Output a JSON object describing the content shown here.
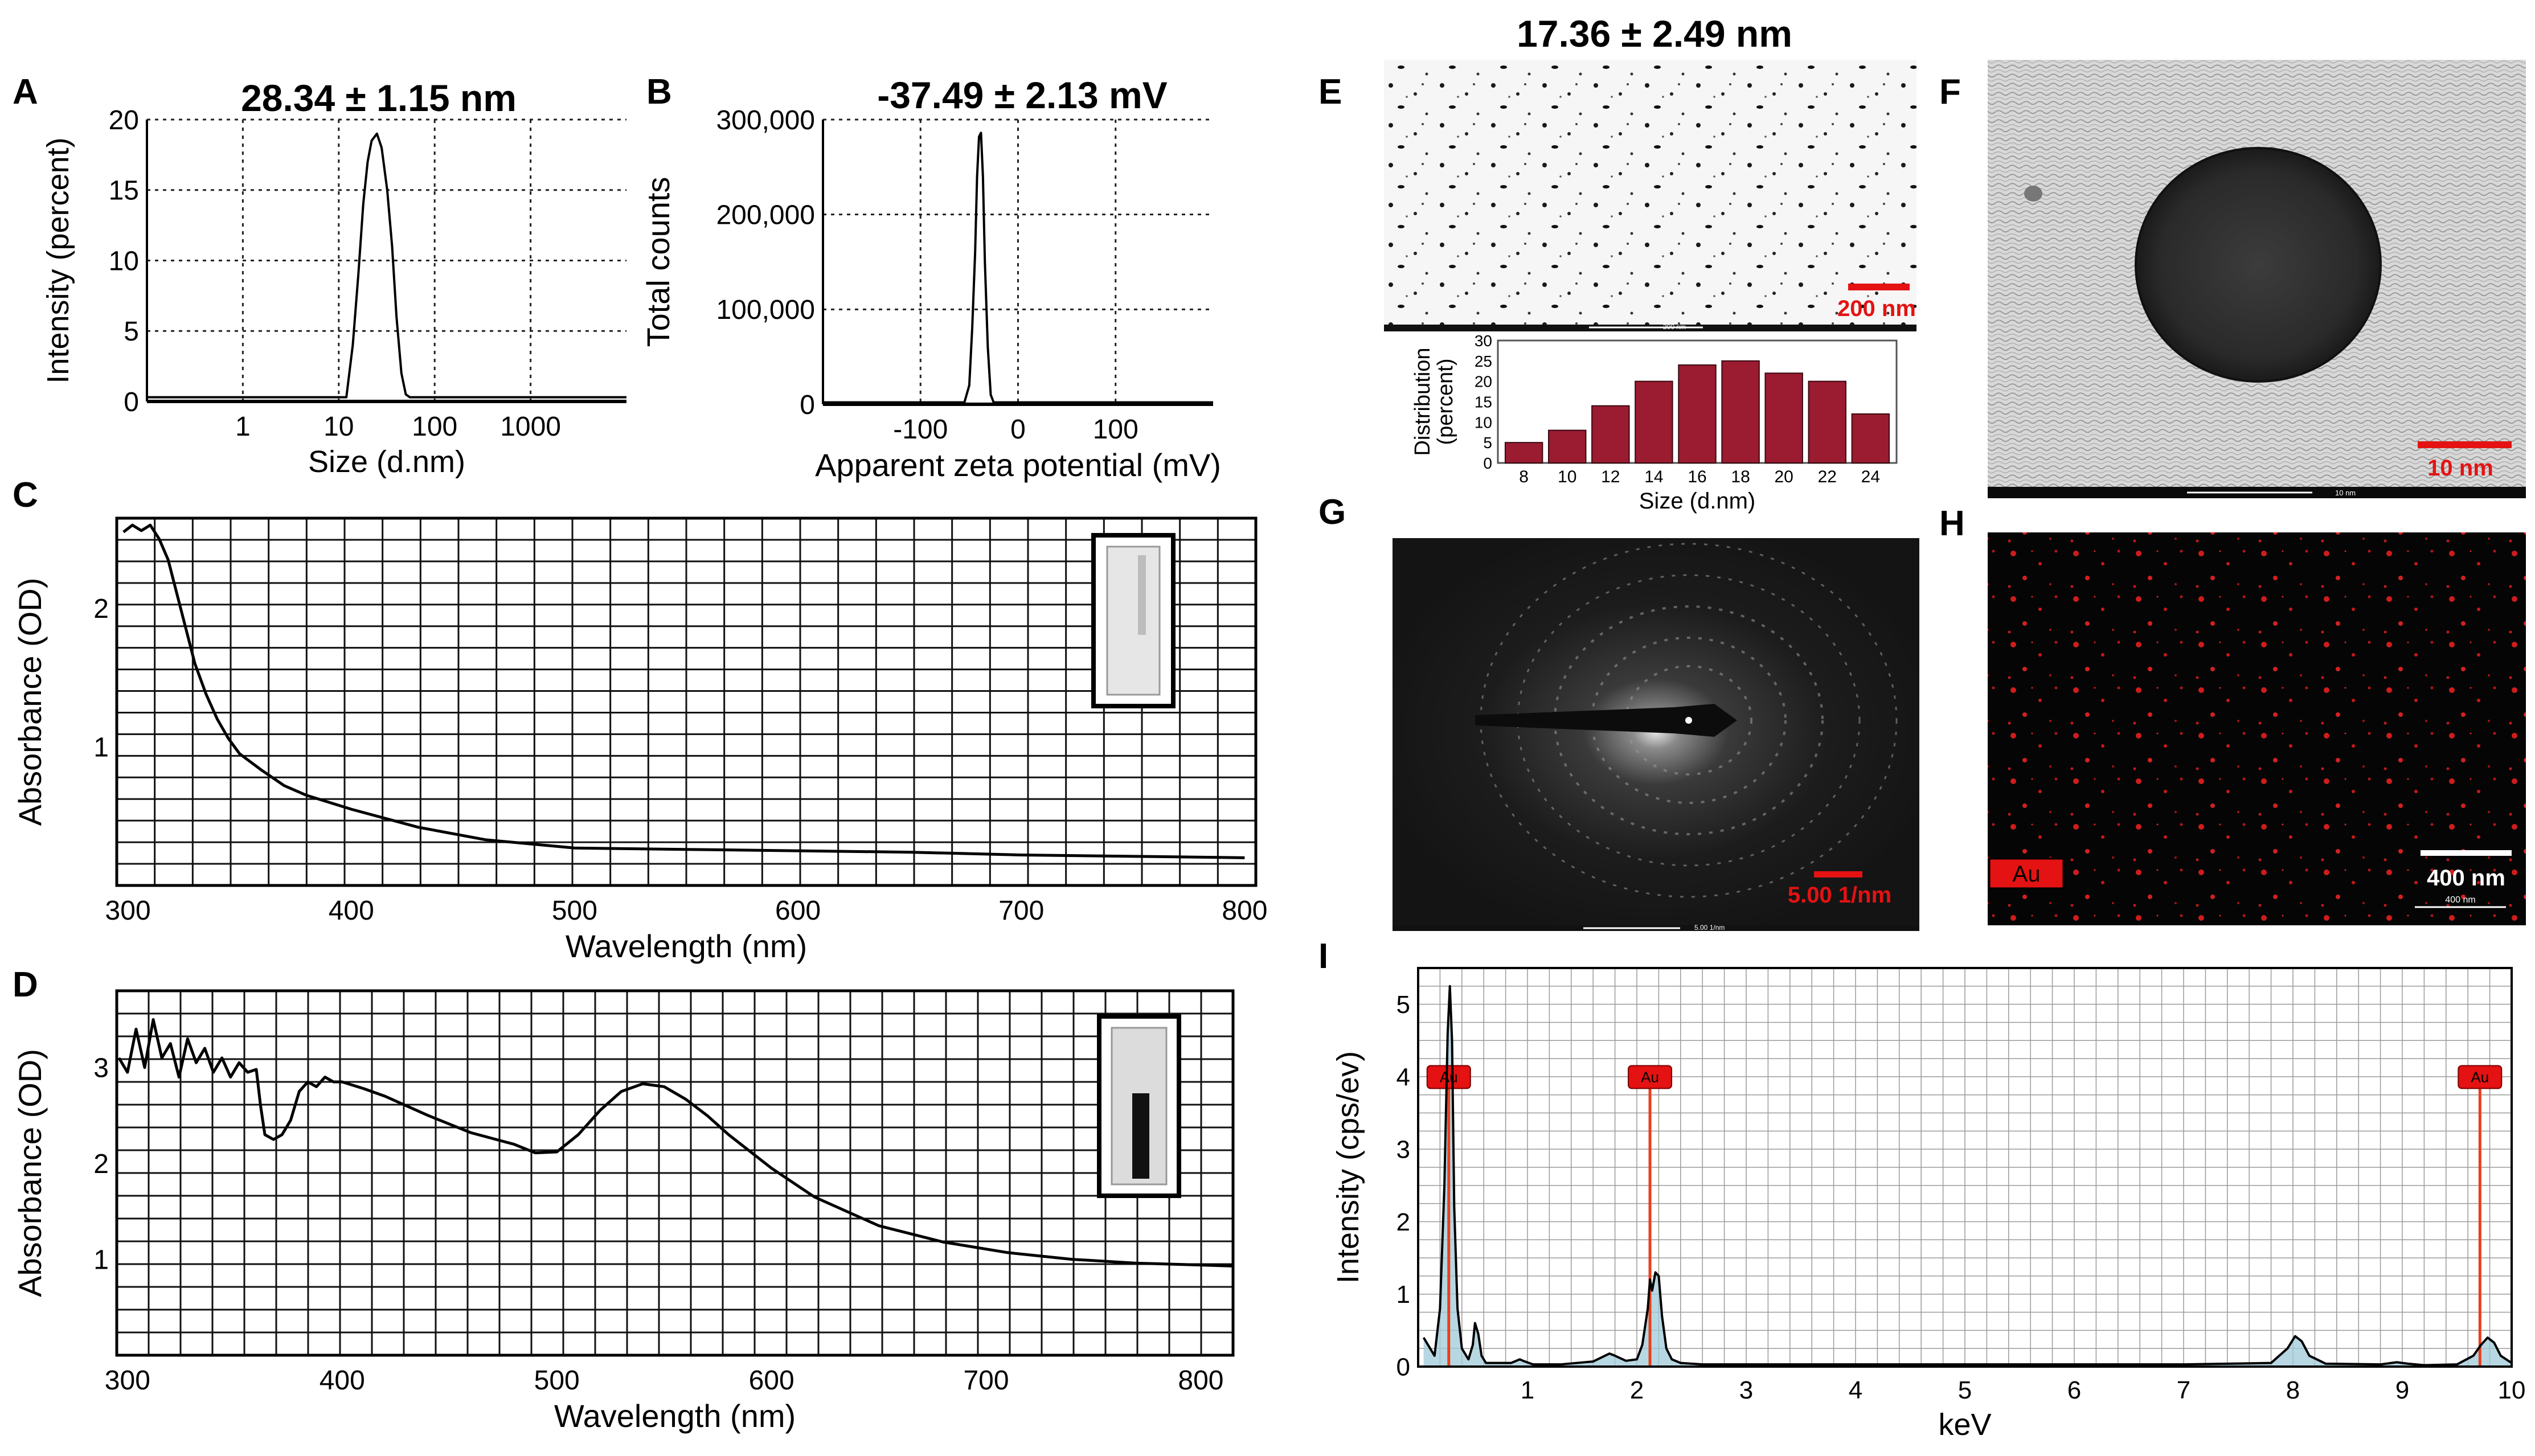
{
  "figure": {
    "panels": {
      "A": {
        "letter": "A",
        "title": "28.34 ± 1.15 nm"
      },
      "B": {
        "letter": "B",
        "title": "-37.49 ± 2.13 mV"
      },
      "C": {
        "letter": "C"
      },
      "D": {
        "letter": "D"
      },
      "E": {
        "letter": "E",
        "title": "17.36 ± 2.49 nm",
        "scale_bar": "200 nm",
        "micro_scale": "200 nm"
      },
      "F": {
        "letter": "F",
        "scale_bar": "10 nm",
        "micro_scale": "10 nm"
      },
      "G": {
        "letter": "G",
        "scale_bar": "5.00 1/nm",
        "micro_scale": "5.00 1/nm"
      },
      "H": {
        "letter": "H",
        "scale_bar": "400 nm",
        "micro_scale": "400 nm",
        "element_label": "Au"
      },
      "I": {
        "letter": "I"
      }
    },
    "colors": {
      "line": "#000000",
      "grid": "#333333",
      "bar": "#9b1b30",
      "red": "#e41212",
      "eds_fill": "#9fc9d8",
      "eds_marker": "#e8401c"
    }
  },
  "chart_data": [
    {
      "id": "A",
      "type": "line",
      "xlabel": "Size (d.nm)",
      "ylabel": "Intensity (percent)",
      "xscale": "log",
      "xlim": [
        0.1,
        10000
      ],
      "ylim": [
        0,
        20
      ],
      "xticks": [
        {
          "v": 1,
          "l": "1"
        },
        {
          "v": 10,
          "l": "10"
        },
        {
          "v": 100,
          "l": "100"
        },
        {
          "v": 1000,
          "l": "1000"
        }
      ],
      "yticks": [
        {
          "v": 0,
          "l": "0"
        },
        {
          "v": 5,
          "l": "5"
        },
        {
          "v": 10,
          "l": "10"
        },
        {
          "v": 15,
          "l": "15"
        },
        {
          "v": 20,
          "l": "20"
        }
      ],
      "x": [
        0.1,
        12,
        14,
        16,
        18,
        20,
        22,
        25,
        28,
        32,
        36,
        40,
        45,
        50,
        55,
        10000
      ],
      "y": [
        0.3,
        0.3,
        4,
        9,
        14,
        17,
        18.5,
        19,
        18,
        15,
        11,
        6,
        2,
        0.5,
        0.3,
        0.3
      ]
    },
    {
      "id": "B",
      "type": "line",
      "xlabel": "Apparent zeta potential (mV)",
      "ylabel": "Total counts",
      "xlim": [
        -200,
        200
      ],
      "ylim": [
        0,
        300000
      ],
      "xticks": [
        {
          "v": -100,
          "l": "-100"
        },
        {
          "v": 0,
          "l": "0"
        },
        {
          "v": 100,
          "l": "100"
        }
      ],
      "yticks": [
        {
          "v": 0,
          "l": "0"
        },
        {
          "v": 100000,
          "l": "100,000"
        },
        {
          "v": 200000,
          "l": "200,000"
        },
        {
          "v": 300000,
          "l": "300,000"
        }
      ],
      "x": [
        -200,
        -55,
        -50,
        -47,
        -44,
        -42,
        -40,
        -38,
        -36,
        -34,
        -31,
        -28,
        -25,
        200
      ],
      "y": [
        2000,
        2000,
        20000,
        80000,
        160000,
        240000,
        282000,
        286000,
        240000,
        150000,
        60000,
        10000,
        2000,
        2000
      ]
    },
    {
      "id": "C",
      "type": "line",
      "xlabel": "Wavelength (nm)",
      "ylabel": "Absorbance (OD)",
      "xlim": [
        295,
        805
      ],
      "ylim": [
        0,
        2.65
      ],
      "xticks": [
        {
          "v": 300,
          "l": "300"
        },
        {
          "v": 400,
          "l": "400"
        },
        {
          "v": 500,
          "l": "500"
        },
        {
          "v": 600,
          "l": "600"
        },
        {
          "v": 700,
          "l": "700"
        },
        {
          "v": 800,
          "l": "800"
        }
      ],
      "yticks": [
        {
          "v": 1,
          "l": "1"
        },
        {
          "v": 2,
          "l": "2"
        }
      ],
      "x": [
        298,
        302,
        306,
        310,
        314,
        318,
        322,
        326,
        330,
        335,
        340,
        345,
        350,
        360,
        370,
        380,
        400,
        430,
        460,
        500,
        550,
        600,
        650,
        700,
        750,
        800
      ],
      "y": [
        2.55,
        2.6,
        2.56,
        2.6,
        2.5,
        2.35,
        2.1,
        1.85,
        1.6,
        1.38,
        1.2,
        1.06,
        0.95,
        0.83,
        0.72,
        0.65,
        0.55,
        0.42,
        0.33,
        0.27,
        0.26,
        0.25,
        0.24,
        0.22,
        0.21,
        0.2
      ]
    },
    {
      "id": "D",
      "type": "line",
      "xlabel": "Wavelength (nm)",
      "ylabel": "Absorbance (OD)",
      "xlim": [
        295,
        815
      ],
      "ylim": [
        0,
        3.8
      ],
      "xticks": [
        {
          "v": 300,
          "l": "300"
        },
        {
          "v": 400,
          "l": "400"
        },
        {
          "v": 500,
          "l": "500"
        },
        {
          "v": 600,
          "l": "600"
        },
        {
          "v": 700,
          "l": "700"
        },
        {
          "v": 800,
          "l": "800"
        }
      ],
      "yticks": [
        {
          "v": 1,
          "l": "1"
        },
        {
          "v": 2,
          "l": "2"
        },
        {
          "v": 3,
          "l": "3"
        }
      ],
      "x": [
        296,
        300,
        304,
        308,
        312,
        316,
        320,
        324,
        328,
        332,
        336,
        340,
        344,
        348,
        352,
        356,
        360,
        362,
        364,
        368,
        372,
        376,
        380,
        384,
        388,
        392,
        396,
        400,
        410,
        420,
        440,
        460,
        480,
        490,
        500,
        510,
        520,
        530,
        540,
        550,
        560,
        570,
        580,
        600,
        620,
        650,
        680,
        710,
        740,
        770,
        800,
        815
      ],
      "y": [
        3.1,
        2.95,
        3.4,
        3.0,
        3.5,
        3.1,
        3.25,
        2.9,
        3.3,
        3.05,
        3.2,
        2.95,
        3.1,
        2.9,
        3.05,
        2.95,
        2.98,
        2.6,
        2.3,
        2.25,
        2.3,
        2.45,
        2.75,
        2.85,
        2.8,
        2.9,
        2.85,
        2.85,
        2.78,
        2.7,
        2.5,
        2.32,
        2.2,
        2.11,
        2.12,
        2.3,
        2.55,
        2.75,
        2.83,
        2.8,
        2.67,
        2.5,
        2.3,
        1.95,
        1.65,
        1.35,
        1.18,
        1.07,
        1.0,
        0.96,
        0.94,
        0.93
      ]
    },
    {
      "id": "E",
      "type": "bar",
      "xlabel": "Size (d.nm)",
      "ylabel": "Distribution (percent)",
      "ylabel_lines": [
        "Distribution",
        "(percent)"
      ],
      "categories": [
        "8",
        "10",
        "12",
        "14",
        "16",
        "18",
        "20",
        "22",
        "24"
      ],
      "values": [
        5,
        8,
        14,
        20,
        24,
        25,
        22,
        20,
        12
      ],
      "ylim": [
        0,
        30
      ],
      "yticks": [
        {
          "v": 0,
          "l": "0"
        },
        {
          "v": 5,
          "l": "5"
        },
        {
          "v": 10,
          "l": "10"
        },
        {
          "v": 15,
          "l": "15"
        },
        {
          "v": 20,
          "l": "20"
        },
        {
          "v": 25,
          "l": "25"
        },
        {
          "v": 30,
          "l": "30"
        }
      ]
    },
    {
      "id": "I",
      "type": "area",
      "xlabel": "keV",
      "ylabel": "Intensity (cps/ev)",
      "xlim": [
        0,
        10
      ],
      "ylim": [
        0,
        5.5
      ],
      "xticks": [
        {
          "v": 1,
          "l": "1"
        },
        {
          "v": 2,
          "l": "2"
        },
        {
          "v": 3,
          "l": "3"
        },
        {
          "v": 4,
          "l": "4"
        },
        {
          "v": 5,
          "l": "5"
        },
        {
          "v": 6,
          "l": "6"
        },
        {
          "v": 7,
          "l": "7"
        },
        {
          "v": 8,
          "l": "8"
        },
        {
          "v": 9,
          "l": "9"
        },
        {
          "v": 10,
          "l": "10"
        }
      ],
      "yticks": [
        {
          "v": 0,
          "l": "0"
        },
        {
          "v": 1,
          "l": "1"
        },
        {
          "v": 2,
          "l": "2"
        },
        {
          "v": 3,
          "l": "3"
        },
        {
          "v": 4,
          "l": "4"
        },
        {
          "v": 5,
          "l": "5"
        }
      ],
      "x": [
        0.05,
        0.15,
        0.2,
        0.24,
        0.27,
        0.29,
        0.31,
        0.33,
        0.36,
        0.4,
        0.46,
        0.5,
        0.52,
        0.55,
        0.58,
        0.62,
        0.7,
        0.85,
        0.93,
        0.96,
        1.05,
        1.3,
        1.6,
        1.75,
        1.8,
        1.9,
        2.0,
        2.05,
        2.1,
        2.12,
        2.14,
        2.17,
        2.2,
        2.23,
        2.27,
        2.32,
        2.4,
        2.6,
        3.0,
        4.0,
        5.0,
        6.0,
        7.0,
        7.8,
        7.95,
        8.02,
        8.08,
        8.15,
        8.3,
        8.8,
        8.95,
        9.05,
        9.2,
        9.5,
        9.65,
        9.72,
        9.78,
        9.84,
        9.9,
        10.0
      ],
      "y": [
        0.4,
        0.15,
        0.8,
        2.5,
        4.6,
        5.25,
        4.5,
        2.2,
        0.8,
        0.25,
        0.1,
        0.3,
        0.6,
        0.45,
        0.15,
        0.05,
        0.05,
        0.05,
        0.1,
        0.08,
        0.03,
        0.03,
        0.07,
        0.18,
        0.15,
        0.08,
        0.1,
        0.3,
        0.8,
        1.2,
        1.05,
        1.3,
        1.25,
        0.7,
        0.25,
        0.1,
        0.05,
        0.03,
        0.03,
        0.03,
        0.03,
        0.03,
        0.03,
        0.05,
        0.25,
        0.42,
        0.35,
        0.15,
        0.04,
        0.03,
        0.06,
        0.04,
        0.02,
        0.03,
        0.15,
        0.3,
        0.4,
        0.33,
        0.15,
        0.05
      ],
      "markers": [
        {
          "x": 0.28,
          "label": "Au"
        },
        {
          "x": 2.12,
          "label": "Au"
        },
        {
          "x": 9.71,
          "label": "Au"
        }
      ]
    }
  ]
}
